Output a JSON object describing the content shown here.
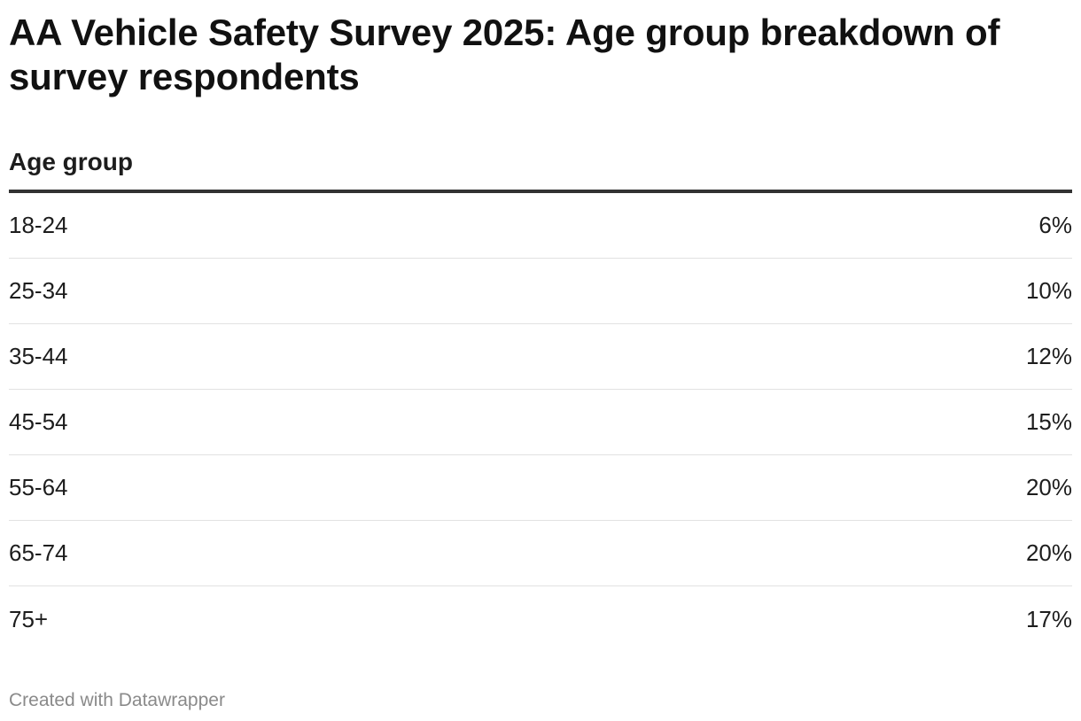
{
  "chart_data": {
    "type": "table",
    "title": "AA Vehicle Safety Survey 2025: Age group breakdown of survey respondents",
    "columns": [
      "Age group",
      ""
    ],
    "rows": [
      {
        "label": "18-24",
        "value": "6%"
      },
      {
        "label": "25-34",
        "value": "10%"
      },
      {
        "label": "35-44",
        "value": "12%"
      },
      {
        "label": "45-54",
        "value": "15%"
      },
      {
        "label": "55-64",
        "value": "20%"
      },
      {
        "label": "65-74",
        "value": "20%"
      },
      {
        "label": "75+",
        "value": "17%"
      }
    ],
    "values_percent": [
      6,
      10,
      12,
      15,
      20,
      20,
      17
    ]
  },
  "footer": {
    "credit": "Created with Datawrapper"
  },
  "colors": {
    "text": "#1d1d1d",
    "header_rule": "#333333",
    "row_rule": "#e2e2e2",
    "footer_text": "#8a8a8a"
  }
}
